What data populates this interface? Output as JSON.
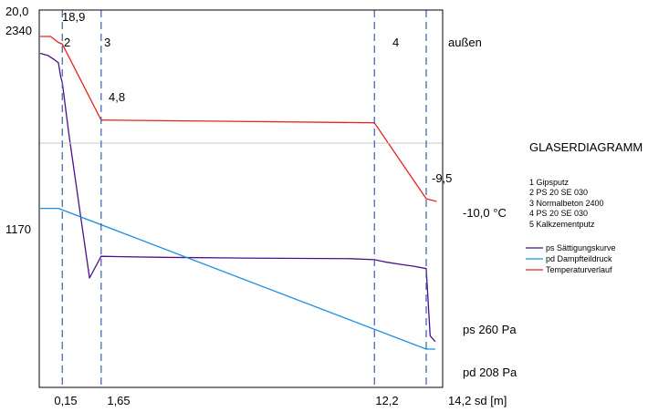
{
  "chart_data": {
    "type": "line",
    "title": "GLASERDIAGRAMM",
    "top_left_labels": {
      "temperature": "20,0",
      "pressure": "2340"
    },
    "layer_numbers": [
      "2",
      "3",
      "4"
    ],
    "outside_label": "außen",
    "temperature_labels": [
      "18,9",
      "4,8",
      "-9,5",
      "-10,0 °C"
    ],
    "pressure_mid_label": "1170",
    "end_labels": {
      "ps": "ps 260 Pa",
      "pd": "pd  208 Pa"
    },
    "x_ticks": [
      "0,15",
      "1,65",
      "12,2",
      "14,2 sd [m]"
    ],
    "layers": [
      "1 Gipsputz",
      "2 PS 20 SE 030",
      "3 Normalbeton 2400",
      "4 PS 20 SE 030",
      "5 Kalkzementputz"
    ],
    "sd_boundaries": [
      0,
      0.15,
      1.65,
      12.2,
      14.2
    ],
    "xlim": [
      0,
      14.2
    ],
    "temperature_scale": [
      -10,
      20
    ],
    "pressure_scale": [
      0,
      2340
    ],
    "series": [
      {
        "name": "ps Sättigungskurve",
        "color": "#4b0f8c",
        "points": [
          [
            -0.7,
            2255
          ],
          [
            -0.4,
            2240
          ],
          [
            -0.15,
            2210
          ],
          [
            0.0,
            2190
          ],
          [
            0.08,
            2100
          ],
          [
            0.15,
            2050
          ],
          [
            0.4,
            1700
          ],
          [
            0.8,
            1200
          ],
          [
            1.2,
            700
          ],
          [
            1.65,
            850
          ],
          [
            4.0,
            843
          ],
          [
            7.0,
            838
          ],
          [
            11.3,
            834
          ],
          [
            12.2,
            827
          ],
          [
            12.6,
            812
          ],
          [
            13.2,
            795
          ],
          [
            13.7,
            782
          ],
          [
            14.2,
            765
          ],
          [
            14.35,
            300
          ],
          [
            14.55,
            260
          ]
        ]
      },
      {
        "name": "pd Dampfteildruck",
        "color": "#1a8fe0",
        "points": [
          [
            -0.7,
            1182
          ],
          [
            0.0,
            1182
          ],
          [
            14.2,
            208
          ],
          [
            14.55,
            208
          ]
        ]
      },
      {
        "name": "Temperaturverlauf",
        "color": "#e8231c",
        "points": [
          [
            -0.7,
            20.0
          ],
          [
            -0.3,
            20.0
          ],
          [
            0.0,
            18.9
          ],
          [
            0.15,
            18.6
          ],
          [
            1.65,
            4.8
          ],
          [
            12.2,
            4.3
          ],
          [
            14.2,
            -9.5
          ],
          [
            14.6,
            -10.0
          ]
        ]
      }
    ]
  }
}
